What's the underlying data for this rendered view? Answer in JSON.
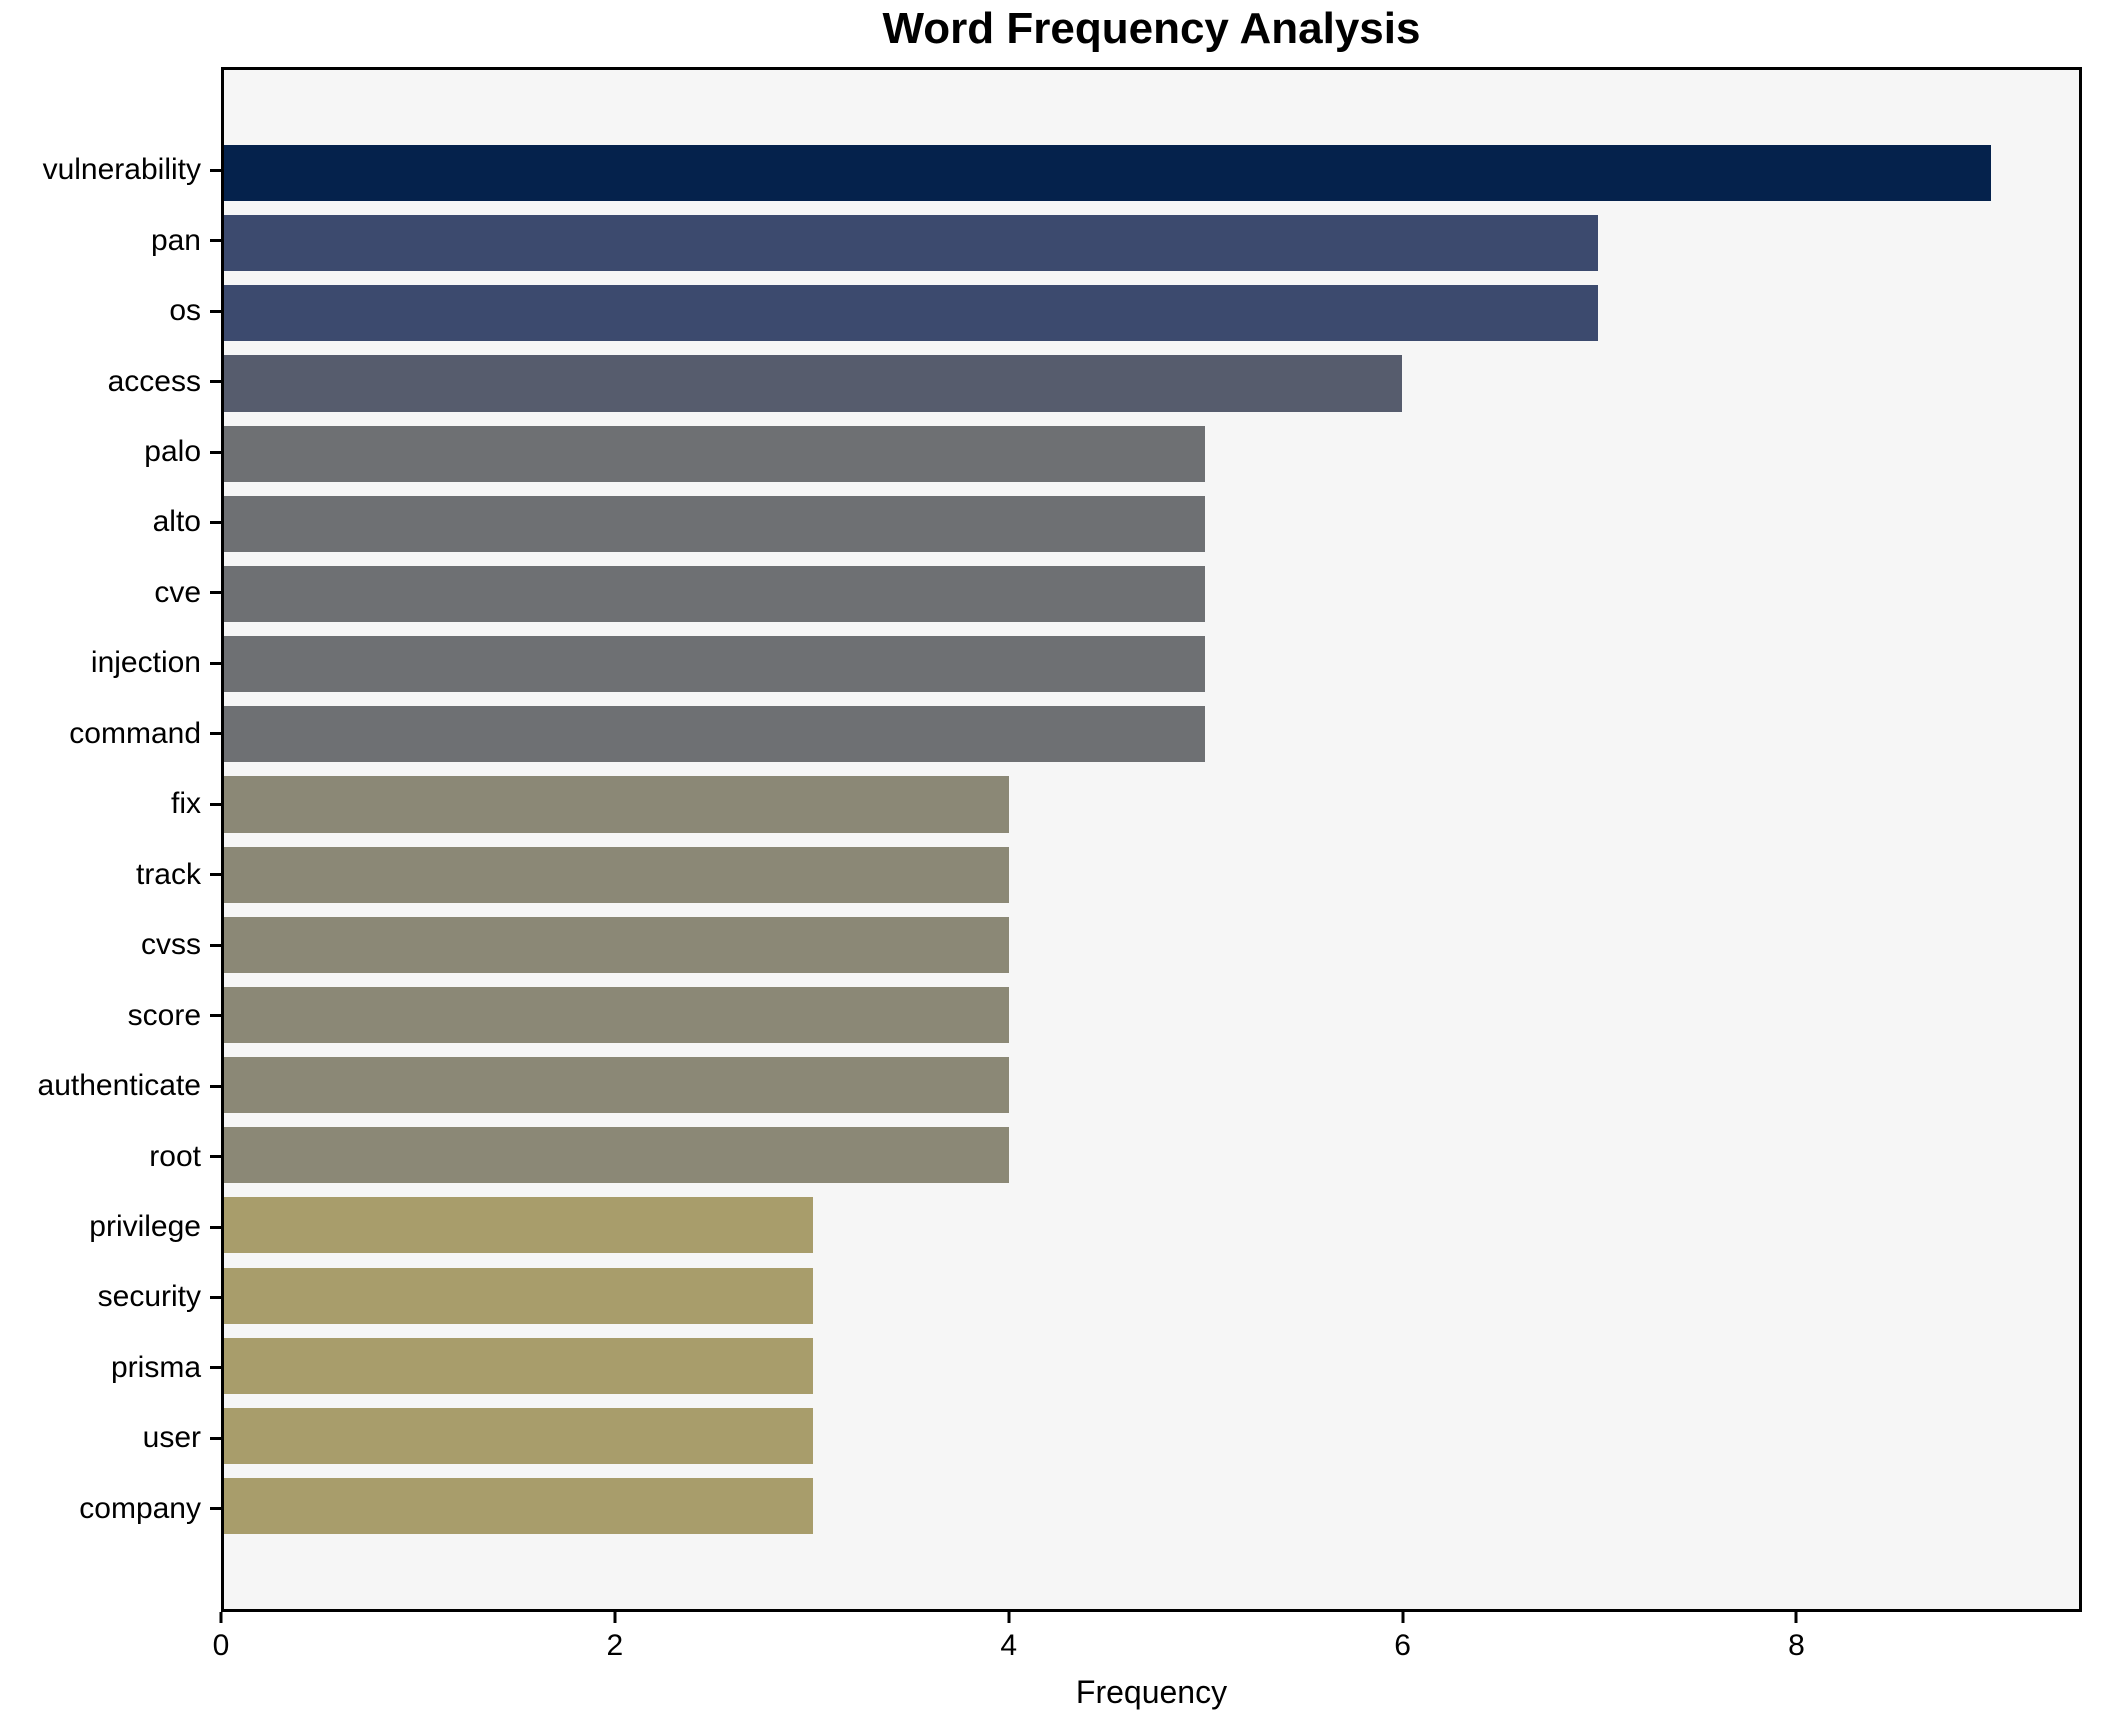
{
  "figure": {
    "title": "Word Frequency Analysis",
    "background_color": "#ffffff",
    "plot_background_color": "#f6f6f6",
    "spine_color": "#000000"
  },
  "chart_data": {
    "type": "bar",
    "orientation": "horizontal",
    "title": "Word Frequency Analysis",
    "xlabel": "Frequency",
    "ylabel": "",
    "categories": [
      "vulnerability",
      "pan",
      "os",
      "access",
      "palo",
      "alto",
      "cve",
      "injection",
      "command",
      "fix",
      "track",
      "cvss",
      "score",
      "authenticate",
      "root",
      "privilege",
      "security",
      "prisma",
      "user",
      "company"
    ],
    "values": [
      9,
      7,
      7,
      6,
      5,
      5,
      5,
      5,
      5,
      4,
      4,
      4,
      4,
      4,
      4,
      3,
      3,
      3,
      3,
      3
    ],
    "bar_colors": [
      "#05224c",
      "#3c4a6e",
      "#3c4a6e",
      "#565c6d",
      "#6e7073",
      "#6e7073",
      "#6e7073",
      "#6e7073",
      "#6e7073",
      "#8b8876",
      "#8b8876",
      "#8b8876",
      "#8b8876",
      "#8b8876",
      "#8b8876",
      "#a89d6b",
      "#a89d6b",
      "#a89d6b",
      "#a89d6b",
      "#a89d6b"
    ],
    "colormap": "cividis",
    "xlim": [
      0,
      9.45
    ],
    "xticks": [
      0,
      2,
      4,
      6,
      8
    ],
    "grid": false,
    "legend": null
  }
}
